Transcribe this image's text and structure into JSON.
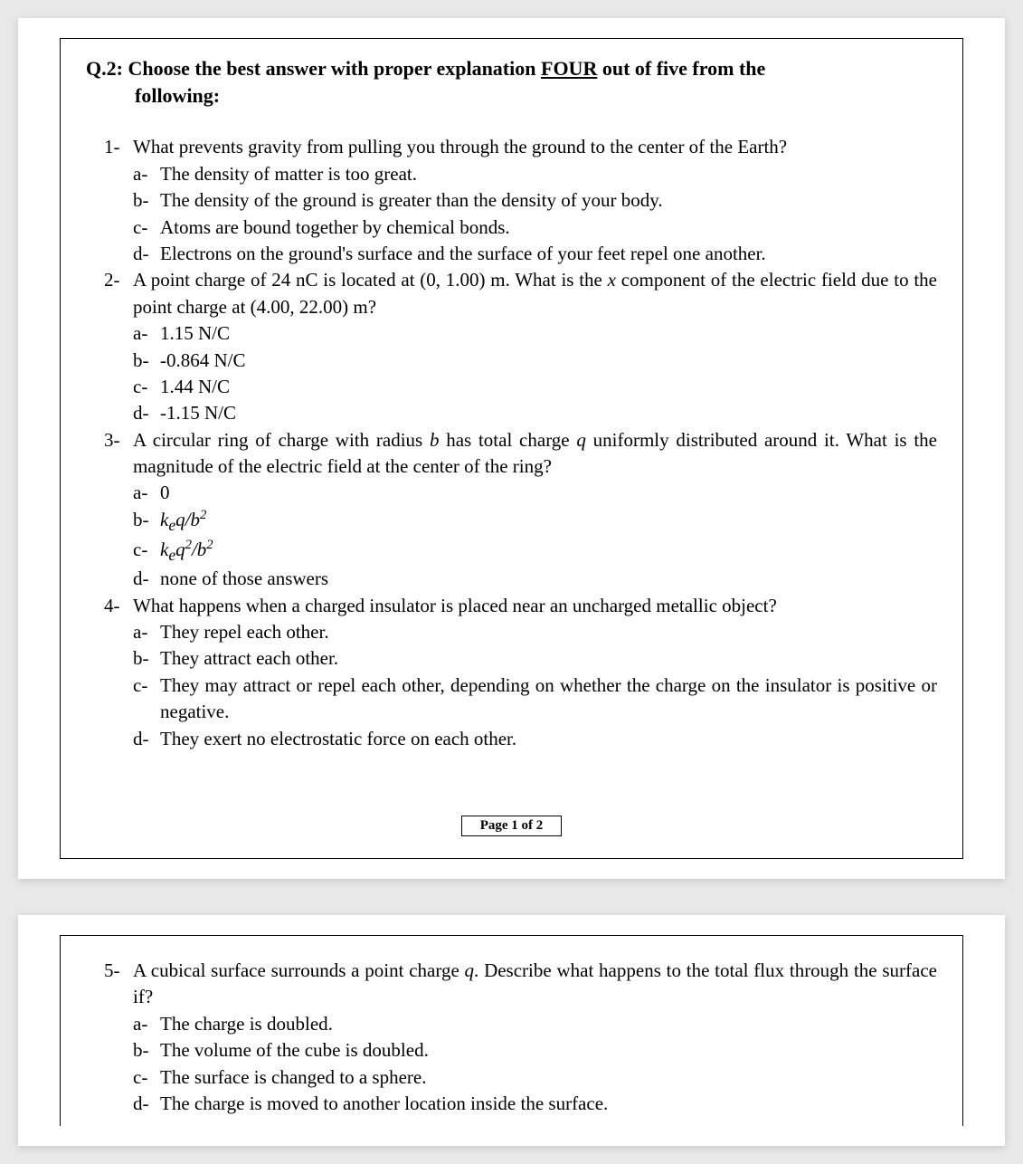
{
  "header": {
    "prefix": "Q.2:",
    "line": "Choose the best answer with proper explanation ",
    "underlined": "FOUR",
    "suffix": " out of five from the",
    "line2": "following:"
  },
  "questions": [
    {
      "num": "1-",
      "text": "What prevents gravity from pulling you through the ground to the center of the Earth?",
      "opts": [
        {
          "l": "a-",
          "t": "The density of matter is too great."
        },
        {
          "l": "b-",
          "t": "The density of the ground is greater than the density of your body."
        },
        {
          "l": "c-",
          "t": " Atoms are bound together by chemical bonds."
        },
        {
          "l": "d-",
          "t": " Electrons on the ground's surface and the surface of your feet repel one another."
        }
      ]
    },
    {
      "num": "2-",
      "text_parts": {
        "a": "A point charge of 24 nC is located at (0, 1.00) m. What is the ",
        "x": "x",
        "b": " component of the electric field due to the point charge at (4.00, 22.00) m?"
      },
      "opts": [
        {
          "l": "a-",
          "t": "1.15 N/C"
        },
        {
          "l": "b-",
          "t": "-0.864 N/C"
        },
        {
          "l": "c-",
          "t": "1.44 N/C"
        },
        {
          "l": "d-",
          "t": " -1.15 N/C"
        }
      ]
    },
    {
      "num": "3-",
      "text_parts": {
        "a": "A circular ring of charge with radius ",
        "b_var": "b",
        "b": " has total charge ",
        "q_var": "q",
        "c": " uniformly distributed around it. What is the magnitude of the electric field at the center of the ring?"
      },
      "opts": [
        {
          "l": "a-",
          "t": "0"
        },
        {
          "l": "b-",
          "html": "keq_b2"
        },
        {
          "l": "c-",
          "html": "keq2_b2"
        },
        {
          "l": "d-",
          "t": "none of those answers"
        }
      ]
    },
    {
      "num": "4-",
      "text": "What happens when a charged insulator is placed near an uncharged metallic object?",
      "opts": [
        {
          "l": "a-",
          "t": "They repel each other."
        },
        {
          "l": "b-",
          "t": "They attract each other."
        },
        {
          "l": "c-",
          "t": "They may attract or repel each other, depending on whether the charge on the insulator is positive or negative."
        },
        {
          "l": "d-",
          "t": "They exert no electrostatic force on each other."
        }
      ]
    }
  ],
  "page_foot": "Page 1 of 2",
  "q5": {
    "num": "5-",
    "text_parts": {
      "a": "A cubical surface surrounds a point charge ",
      "q_var": "q",
      "b": ". Describe what happens to the total flux through the surface if?"
    },
    "opts": [
      {
        "l": "a-",
        "t": "The charge is doubled."
      },
      {
        "l": "b-",
        "t": "The volume of the cube is doubled."
      },
      {
        "l": "c-",
        "t": "The surface is changed to a sphere."
      },
      {
        "l": "d-",
        "t": "The charge is moved to another location inside the surface."
      }
    ]
  },
  "formula_text": {
    "ke": "k",
    "e_sub": "e",
    "q": "q",
    "slash": "/",
    "b": "b",
    "sq": "2"
  }
}
